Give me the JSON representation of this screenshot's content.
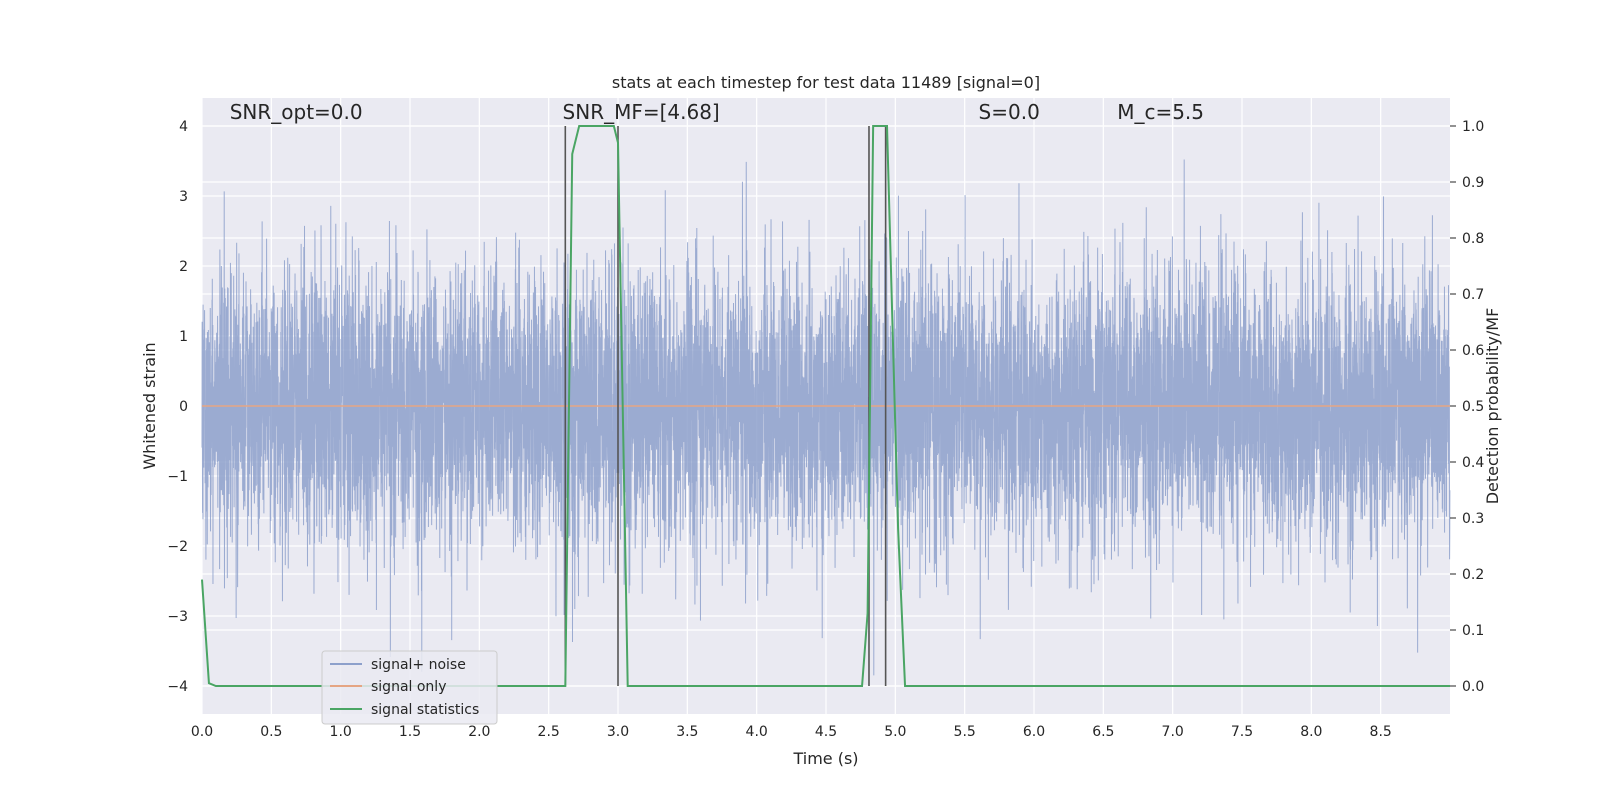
{
  "chart_data": {
    "type": "line",
    "title": "stats at each timestep for test data 11489 [signal=0]",
    "xlabel": "Time (s)",
    "ylabel": "Whitened strain",
    "ylabel_right": "Detection probability/MF",
    "xlim": [
      0,
      9.0
    ],
    "ylim": [
      -4.4,
      4.4
    ],
    "ylim_right": [
      -0.05,
      1.05
    ],
    "x_ticks": [
      "0.0",
      "0.5",
      "1.0",
      "1.5",
      "2.0",
      "2.5",
      "3.0",
      "3.5",
      "4.0",
      "4.5",
      "5.0",
      "5.5",
      "6.0",
      "6.5",
      "7.0",
      "7.5",
      "8.0",
      "8.5"
    ],
    "y_ticks": [
      "−4",
      "−3",
      "−2",
      "−1",
      "0",
      "1",
      "2",
      "3",
      "4"
    ],
    "y_ticks_right": [
      "0.0",
      "0.1",
      "0.2",
      "0.3",
      "0.4",
      "0.5",
      "0.6",
      "0.7",
      "0.8",
      "0.9",
      "1.0"
    ],
    "grid": true,
    "legend_position": "lower-left",
    "annotations": [
      {
        "text": "SNR_opt=0.0",
        "x": 0.2,
        "y": 4.1
      },
      {
        "text": "SNR_MF=[4.68]",
        "x": 2.6,
        "y": 4.1
      },
      {
        "text": "S=0.0",
        "x": 5.6,
        "y": 4.1
      },
      {
        "text": "M_c=5.5",
        "x": 6.6,
        "y": 4.1
      }
    ],
    "series": [
      {
        "name": "signal+ noise",
        "color": "#8da0cb",
        "kind": "noise",
        "sample_rate": 1024,
        "rms": 0.98,
        "x_range": [
          0,
          9.0
        ]
      },
      {
        "name": "signal only",
        "color": "#e5a583",
        "x": [
          0,
          9.0
        ],
        "y": [
          0,
          0
        ]
      },
      {
        "name": "signal statistics",
        "color": "#4aa564",
        "axis": "right",
        "x": [
          0.0,
          0.05,
          0.1,
          0.15,
          2.62,
          2.67,
          2.72,
          2.9,
          2.97,
          3.0,
          3.07,
          4.76,
          4.8,
          4.84,
          4.87,
          4.94,
          5.02,
          5.07,
          9.0
        ],
        "y": [
          0.19,
          0.005,
          0.0,
          0.0,
          0.0,
          0.95,
          1.0,
          1.0,
          1.0,
          0.97,
          0.0,
          0.0,
          0.13,
          1.0,
          1.0,
          1.0,
          0.28,
          0.0,
          0.0
        ]
      }
    ],
    "vertical_lines": [
      2.62,
      3.0,
      4.81,
      4.93
    ],
    "vertical_line_color": "#555555",
    "vertical_line_range": [
      -4.0,
      4.0
    ],
    "legend": [
      {
        "label": "signal+ noise",
        "color": "#8da0cb"
      },
      {
        "label": "signal only",
        "color": "#e5a583"
      },
      {
        "label": "signal statistics",
        "color": "#4aa564"
      }
    ]
  }
}
